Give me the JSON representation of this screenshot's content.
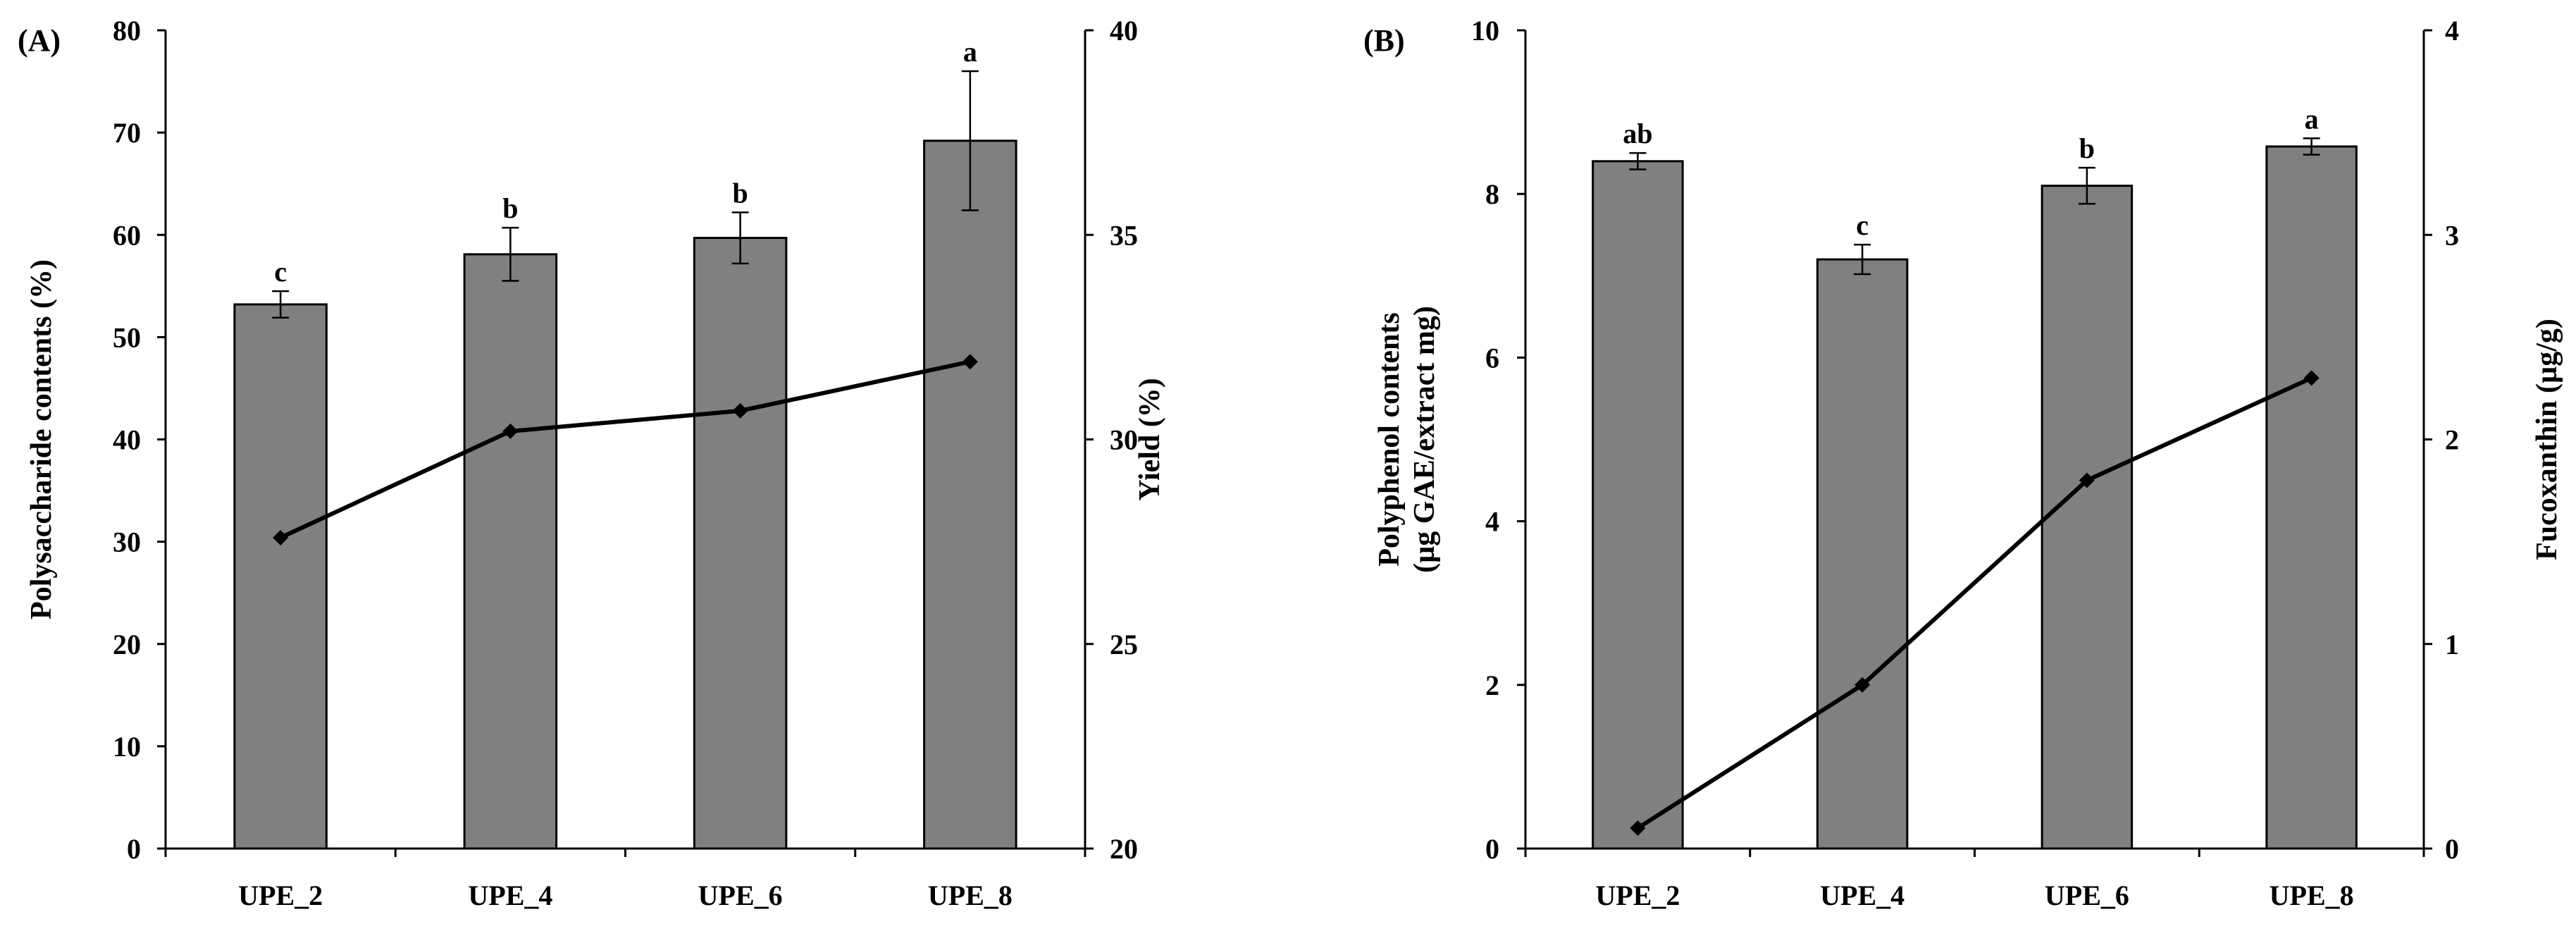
{
  "chart_data": [
    {
      "type": "bar+line",
      "panel_label": "(A)",
      "categories": [
        "UPE_2",
        "UPE_4",
        "UPE_6",
        "UPE_8"
      ],
      "bar_series": {
        "name": "Polysaccharide contents (%)",
        "values": [
          53.2,
          58.1,
          59.7,
          69.2
        ],
        "errors": [
          1.3,
          2.6,
          2.5,
          6.8
        ],
        "significance": [
          "c",
          "b",
          "b",
          "a"
        ],
        "color": "#808080"
      },
      "line_series": {
        "name": "Yield (%)",
        "values": [
          27.6,
          30.2,
          30.7,
          31.9
        ],
        "color": "#000000"
      },
      "ylabel_left": "Polysaccharide contents (%)",
      "ylabel_left_lines": [
        "Polysaccharide contents (%)"
      ],
      "ylim_left": [
        0,
        80
      ],
      "yticks_left": [
        0,
        10,
        20,
        30,
        40,
        50,
        60,
        70,
        80
      ],
      "ylabel_right": "Yield (%)",
      "ylim_right": [
        20,
        40
      ],
      "yticks_right": [
        20,
        25,
        30,
        35,
        40
      ]
    },
    {
      "type": "bar+line",
      "panel_label": "(B)",
      "categories": [
        "UPE_2",
        "UPE_4",
        "UPE_6",
        "UPE_8"
      ],
      "bar_series": {
        "name": "Polyphenol contents (µg GAE/extract mg)",
        "values": [
          8.4,
          7.2,
          8.1,
          8.58
        ],
        "errors": [
          0.1,
          0.18,
          0.22,
          0.1
        ],
        "significance": [
          "ab",
          "c",
          "b",
          "a"
        ],
        "color": "#808080"
      },
      "line_series": {
        "name": "Fucoxanthin (µg/g)",
        "values": [
          0.1,
          0.8,
          1.8,
          2.3
        ],
        "color": "#000000"
      },
      "ylabel_left": "Polyphenol contents (µg GAE/extract mg)",
      "ylabel_left_lines": [
        "Polyphenol contents",
        "(µg GAE/extract mg)"
      ],
      "ylim_left": [
        0,
        10
      ],
      "yticks_left": [
        0,
        2,
        4,
        6,
        8,
        10
      ],
      "ylabel_right": "Fucoxanthin (µg/g)",
      "ylim_right": [
        0,
        4
      ],
      "yticks_right": [
        0,
        1,
        2,
        3,
        4
      ]
    }
  ]
}
